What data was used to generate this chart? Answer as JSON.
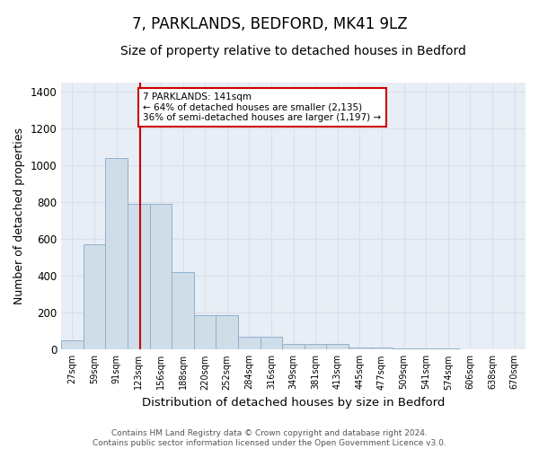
{
  "title1": "7, PARKLANDS, BEDFORD, MK41 9LZ",
  "title2": "Size of property relative to detached houses in Bedford",
  "xlabel": "Distribution of detached houses by size in Bedford",
  "ylabel": "Number of detached properties",
  "bar_values": [
    50,
    570,
    1040,
    790,
    790,
    420,
    185,
    185,
    70,
    70,
    30,
    30,
    30,
    12,
    12,
    8,
    5,
    5,
    2,
    2,
    2
  ],
  "categories": [
    "27sqm",
    "59sqm",
    "91sqm",
    "123sqm",
    "156sqm",
    "188sqm",
    "220sqm",
    "252sqm",
    "284sqm",
    "316sqm",
    "349sqm",
    "381sqm",
    "413sqm",
    "445sqm",
    "477sqm",
    "509sqm",
    "541sqm",
    "574sqm",
    "606sqm",
    "638sqm",
    "670sqm"
  ],
  "bar_color": "#cfdde8",
  "bar_edge_color": "#8fb0cc",
  "red_line_x": 3,
  "annotation_text": "7 PARKLANDS: 141sqm\n← 64% of detached houses are smaller (2,135)\n36% of semi-detached houses are larger (1,197) →",
  "annotation_box_color": "#ffffff",
  "annotation_box_edge": "#cc0000",
  "ylim": [
    0,
    1450
  ],
  "yticks": [
    0,
    200,
    400,
    600,
    800,
    1000,
    1200,
    1400
  ],
  "background_color": "#e8eef5",
  "grid_color": "#d8e0ec",
  "footer_text": "Contains HM Land Registry data © Crown copyright and database right 2024.\nContains public sector information licensed under the Open Government Licence v3.0.",
  "title1_fontsize": 12,
  "title2_fontsize": 10,
  "xlabel_fontsize": 9.5,
  "ylabel_fontsize": 9
}
